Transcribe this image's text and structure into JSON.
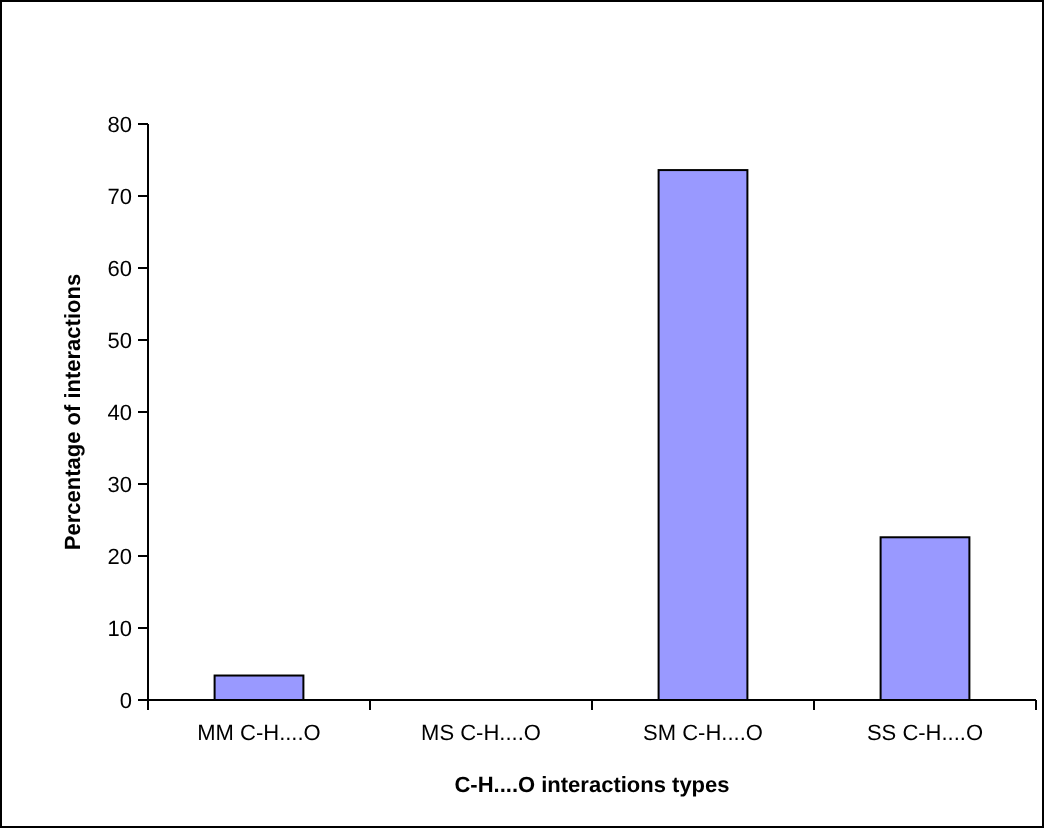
{
  "chart_data": {
    "type": "bar",
    "xlabel": "C-H....O interactions types",
    "ylabel": "Percentage of interactions",
    "categories": [
      "MM C-H....O",
      "MS C-H....O",
      "SM C-H....O",
      "SS C-H....O"
    ],
    "values": [
      3.4,
      0,
      73.6,
      22.6
    ],
    "color": "#9999ff",
    "ylim": [
      0,
      80
    ],
    "yticks": [
      0,
      10,
      20,
      30,
      40,
      50,
      60,
      70,
      80
    ],
    "grid": false
  }
}
